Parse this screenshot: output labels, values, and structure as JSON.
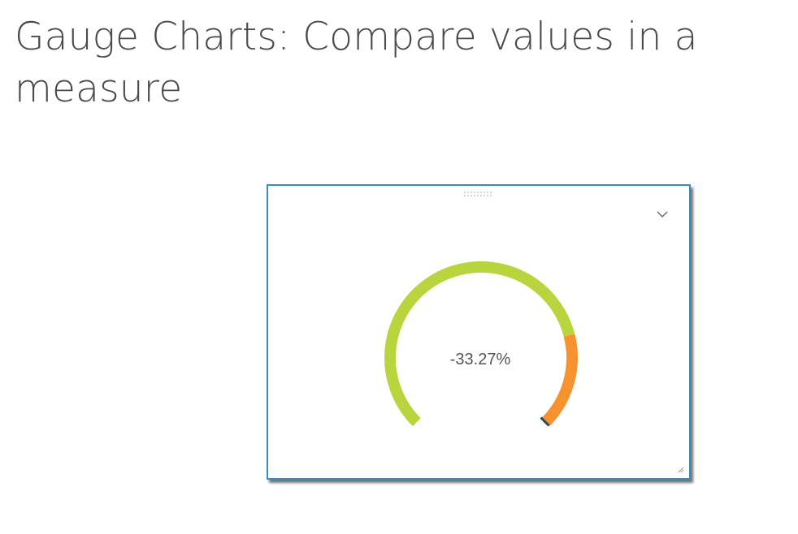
{
  "slide": {
    "title": "Gauge Charts: Compare values in a measure"
  },
  "widget": {
    "gauge_value_text": "-33.27%",
    "menu_icon": "chevron-down-icon",
    "drag_icon": "drag-handle-icon",
    "resize_icon": "resize-grip-icon"
  },
  "chart_data": {
    "type": "gauge",
    "value_label": "-33.27%",
    "arc_start_deg": 225,
    "arc_end_deg": -45,
    "segments": [
      {
        "color": "#b9d53e",
        "fraction": 0.78
      },
      {
        "color": "#f7922f",
        "fraction": 0.22
      }
    ],
    "needle_at_fraction": 1.0,
    "needle_color": "#2a4a60"
  },
  "colors": {
    "title": "#4a4a4a",
    "widget_border": "#2f8fc8",
    "value_text": "#555555"
  }
}
